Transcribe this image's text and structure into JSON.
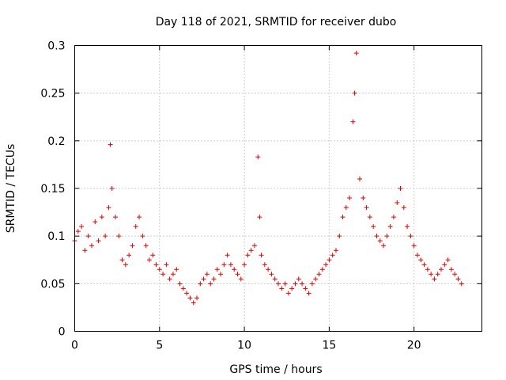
{
  "chart_data": {
    "type": "scatter",
    "title": "Day 118 of 2021, SRMTID for receiver dubo",
    "xlabel": "GPS time / hours",
    "ylabel": "SRMTID / TECUs",
    "xlim": [
      0,
      24
    ],
    "ylim": [
      0,
      0.3
    ],
    "x_ticks": [
      0,
      5,
      10,
      15,
      20
    ],
    "x_tick_labels": [
      "0",
      "5",
      "10",
      "15",
      "20"
    ],
    "y_ticks": [
      0,
      0.05,
      0.1,
      0.15,
      0.2,
      0.25,
      0.3
    ],
    "y_tick_labels": [
      "0",
      "0.05",
      "0.1",
      "0.15",
      "0.2",
      "0.25",
      "0.3"
    ],
    "grid": true,
    "marker": "plus",
    "color": "#e00000",
    "series": [
      {
        "name": "SRMTID",
        "x": [
          0.0,
          0.2,
          0.4,
          0.6,
          0.8,
          1.0,
          1.2,
          1.4,
          1.6,
          1.8,
          2.0,
          2.1,
          2.2,
          2.4,
          2.6,
          2.8,
          3.0,
          3.2,
          3.4,
          3.6,
          3.8,
          4.0,
          4.2,
          4.4,
          4.6,
          4.8,
          5.0,
          5.2,
          5.4,
          5.6,
          5.8,
          6.0,
          6.2,
          6.4,
          6.6,
          6.8,
          7.0,
          7.2,
          7.4,
          7.6,
          7.8,
          8.0,
          8.2,
          8.4,
          8.6,
          8.8,
          9.0,
          9.2,
          9.4,
          9.6,
          9.8,
          10.0,
          10.2,
          10.4,
          10.6,
          10.8,
          10.9,
          11.0,
          11.2,
          11.4,
          11.6,
          11.8,
          12.0,
          12.2,
          12.4,
          12.6,
          12.8,
          13.0,
          13.2,
          13.4,
          13.6,
          13.8,
          14.0,
          14.2,
          14.4,
          14.6,
          14.8,
          15.0,
          15.2,
          15.4,
          15.6,
          15.8,
          16.0,
          16.2,
          16.4,
          16.5,
          16.6,
          16.8,
          17.0,
          17.2,
          17.4,
          17.6,
          17.8,
          18.0,
          18.2,
          18.4,
          18.6,
          18.8,
          19.0,
          19.2,
          19.4,
          19.6,
          19.8,
          20.0,
          20.2,
          20.4,
          20.6,
          20.8,
          21.0,
          21.2,
          21.4,
          21.6,
          21.8,
          22.0,
          22.2,
          22.4,
          22.6,
          22.8
        ],
        "values": [
          0.095,
          0.105,
          0.11,
          0.085,
          0.1,
          0.09,
          0.115,
          0.095,
          0.12,
          0.1,
          0.13,
          0.196,
          0.15,
          0.12,
          0.1,
          0.075,
          0.07,
          0.08,
          0.09,
          0.11,
          0.12,
          0.1,
          0.09,
          0.075,
          0.08,
          0.07,
          0.065,
          0.06,
          0.07,
          0.055,
          0.06,
          0.065,
          0.05,
          0.045,
          0.04,
          0.035,
          0.03,
          0.035,
          0.05,
          0.055,
          0.06,
          0.05,
          0.055,
          0.065,
          0.06,
          0.07,
          0.08,
          0.07,
          0.065,
          0.06,
          0.055,
          0.07,
          0.08,
          0.085,
          0.09,
          0.183,
          0.12,
          0.08,
          0.07,
          0.065,
          0.06,
          0.055,
          0.05,
          0.045,
          0.05,
          0.04,
          0.045,
          0.05,
          0.055,
          0.05,
          0.045,
          0.04,
          0.05,
          0.055,
          0.06,
          0.065,
          0.07,
          0.075,
          0.08,
          0.085,
          0.1,
          0.12,
          0.13,
          0.14,
          0.22,
          0.25,
          0.292,
          0.16,
          0.14,
          0.13,
          0.12,
          0.11,
          0.1,
          0.095,
          0.09,
          0.1,
          0.11,
          0.12,
          0.135,
          0.15,
          0.13,
          0.11,
          0.1,
          0.09,
          0.08,
          0.075,
          0.07,
          0.065,
          0.06,
          0.055,
          0.06,
          0.065,
          0.07,
          0.075,
          0.065,
          0.06,
          0.055,
          0.05
        ]
      }
    ]
  }
}
